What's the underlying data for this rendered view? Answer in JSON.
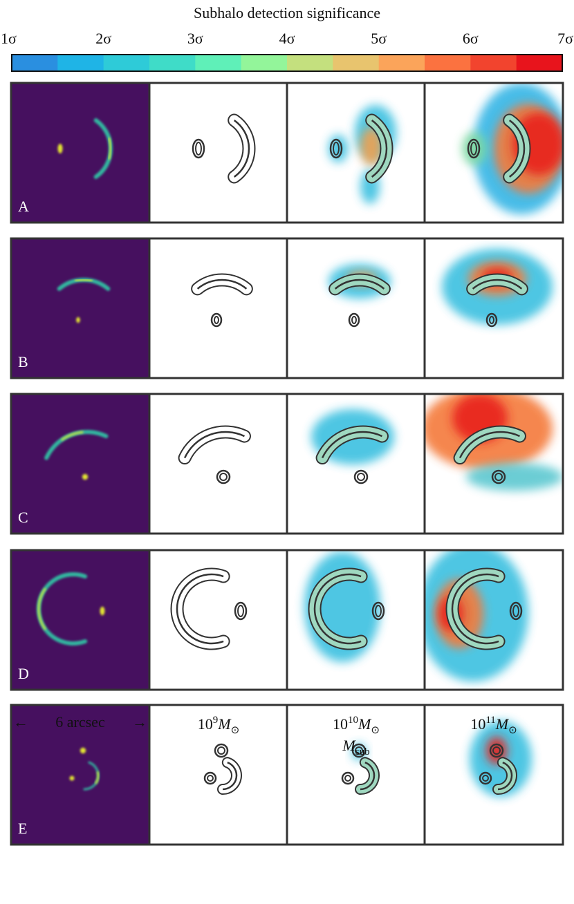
{
  "colorbar": {
    "title": "Subhalo detection significance",
    "colors": [
      "#2a8fe0",
      "#1fb4e6",
      "#2ecbd8",
      "#3fdcc8",
      "#5ff0b8",
      "#93f59a",
      "#c4e07e",
      "#e8c46e",
      "#fba45a",
      "#fb7240",
      "#f2442e",
      "#e8141c"
    ],
    "ticks": [
      {
        "value": 1,
        "label": "1σ"
      },
      {
        "value": 2,
        "label": "2σ"
      },
      {
        "value": 3,
        "label": "3σ"
      },
      {
        "value": 4,
        "label": "4σ"
      },
      {
        "value": 5,
        "label": "5σ"
      },
      {
        "value": 6,
        "label": "6σ"
      },
      {
        "value": 7,
        "label": "7σ"
      }
    ],
    "lim": [
      1,
      7
    ]
  },
  "rows": [
    {
      "label": "A"
    },
    {
      "label": "B"
    },
    {
      "label": "C"
    },
    {
      "label": "D"
    },
    {
      "label": "E"
    }
  ],
  "scale_bar": {
    "left_arrow": "←",
    "text": "6 arcsec",
    "right_arrow": "→"
  },
  "columns": [
    {
      "base": "10",
      "exp": "9",
      "symbol": "M",
      "subscript": "⊙"
    },
    {
      "base": "10",
      "exp": "10",
      "symbol": "M",
      "subscript": "⊙"
    },
    {
      "base": "10",
      "exp": "11",
      "symbol": "M",
      "subscript": "⊙"
    }
  ],
  "axis_label": {
    "symbol": "M",
    "subscript": "sub"
  }
}
